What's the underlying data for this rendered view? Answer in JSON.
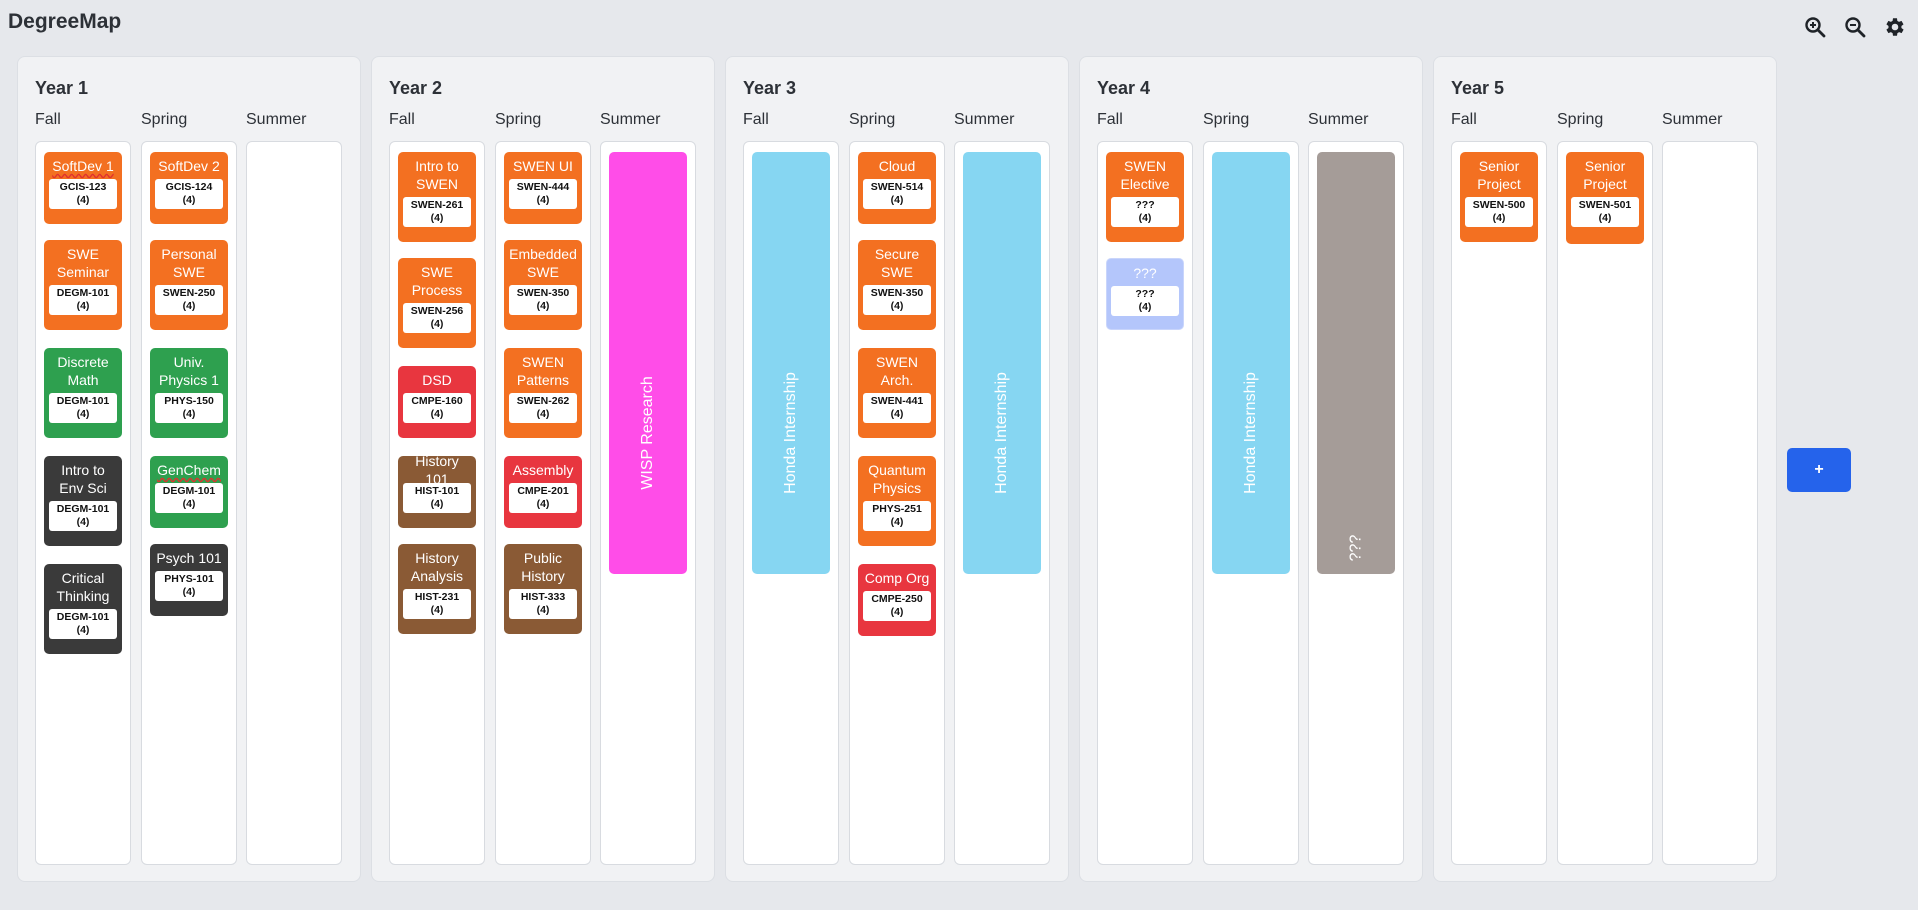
{
  "app": {
    "title": "DegreeMap"
  },
  "toolbar": {
    "zoom_in_icon": "zoom-in-icon",
    "zoom_out_icon": "zoom-out-icon",
    "settings_icon": "gear-icon"
  },
  "add_button": {
    "label": "+"
  },
  "colors": {
    "orange": "#f37021",
    "green": "#2ea04f",
    "dark": "#3a3a3a",
    "red": "#e8363f",
    "brown": "#8a5a35",
    "lavender": "#b4c6fb",
    "magenta": "#ff4de8",
    "light_blue": "#86d6f2",
    "gray": "#a59c98",
    "accent": "#2563eb"
  },
  "years": [
    {
      "title": "Year 1",
      "terms": [
        "Fall",
        "Spring",
        "Summer"
      ],
      "fall": [
        {
          "name": "SoftDev 1",
          "code": "GCIS-123",
          "credits": "(4)"
        },
        {
          "name": "SWE Seminar",
          "code": "DEGM-101",
          "credits": "(4)"
        },
        {
          "name": "Discrete Math",
          "code": "DEGM-101",
          "credits": "(4)"
        },
        {
          "name": "Intro to Env Sci",
          "code": "DEGM-101",
          "credits": "(4)"
        },
        {
          "name": "Critical Thinking",
          "code": "DEGM-101",
          "credits": "(4)"
        }
      ],
      "spring": [
        {
          "name": "SoftDev 2",
          "code": "GCIS-124",
          "credits": "(4)"
        },
        {
          "name": "Personal SWE",
          "code": "SWEN-250",
          "credits": "(4)"
        },
        {
          "name": "Univ. Physics 1",
          "code": "PHYS-150",
          "credits": "(4)"
        },
        {
          "name": "GenChem",
          "code": "DEGM-101",
          "credits": "(4)"
        },
        {
          "name": "Psych 101",
          "code": "PHYS-101",
          "credits": "(4)"
        }
      ]
    },
    {
      "title": "Year 2",
      "terms": [
        "Fall",
        "Spring",
        "Summer"
      ],
      "fall": [
        {
          "name": "Intro to SWEN",
          "code": "SWEN-261",
          "credits": "(4)"
        },
        {
          "name": "SWE Process",
          "code": "SWEN-256",
          "credits": "(4)"
        },
        {
          "name": "DSD",
          "code": "CMPE-160",
          "credits": "(4)"
        },
        {
          "name": "History 101",
          "code": "HIST-101",
          "credits": "(4)"
        },
        {
          "name": "History Analysis",
          "code": "HIST-231",
          "credits": "(4)"
        }
      ],
      "spring": [
        {
          "name": "SWEN UI",
          "code": "SWEN-444",
          "credits": "(4)"
        },
        {
          "name": "Embedded SWE",
          "code": "SWEN-350",
          "credits": "(4)"
        },
        {
          "name": "SWEN Patterns",
          "code": "SWEN-262",
          "credits": "(4)"
        },
        {
          "name": "Assembly",
          "code": "CMPE-201",
          "credits": "(4)"
        },
        {
          "name": "Public History",
          "code": "HIST-333",
          "credits": "(4)"
        }
      ],
      "summer": {
        "name": "WISP Research"
      }
    },
    {
      "title": "Year 3",
      "terms": [
        "Fall",
        "Spring",
        "Summer"
      ],
      "fall": {
        "name": "Honda Internship"
      },
      "spring": [
        {
          "name": "Cloud",
          "code": "SWEN-514",
          "credits": "(4)"
        },
        {
          "name": "Secure SWE",
          "code": "SWEN-350",
          "credits": "(4)"
        },
        {
          "name": "SWEN Arch.",
          "code": "SWEN-441",
          "credits": "(4)"
        },
        {
          "name": "Quantum Physics",
          "code": "PHYS-251",
          "credits": "(4)"
        },
        {
          "name": "Comp Org",
          "code": "CMPE-250",
          "credits": "(4)"
        }
      ],
      "summer": {
        "name": "Honda Internship"
      }
    },
    {
      "title": "Year 4",
      "terms": [
        "Fall",
        "Spring",
        "Summer"
      ],
      "fall": [
        {
          "name": "SWEN Elective",
          "code": "???",
          "credits": "(4)"
        },
        {
          "name": "???",
          "code": "???",
          "credits": "(4)"
        }
      ],
      "spring": {
        "name": "Honda Internship"
      },
      "summer": {
        "name": "???"
      }
    },
    {
      "title": "Year 5",
      "terms": [
        "Fall",
        "Spring",
        "Summer"
      ],
      "fall": [
        {
          "name": "Senior Project",
          "code": "SWEN-500",
          "credits": "(4)"
        }
      ],
      "spring": [
        {
          "name": "Senior Project",
          "code": "SWEN-501",
          "credits": "(4)"
        }
      ]
    }
  ]
}
